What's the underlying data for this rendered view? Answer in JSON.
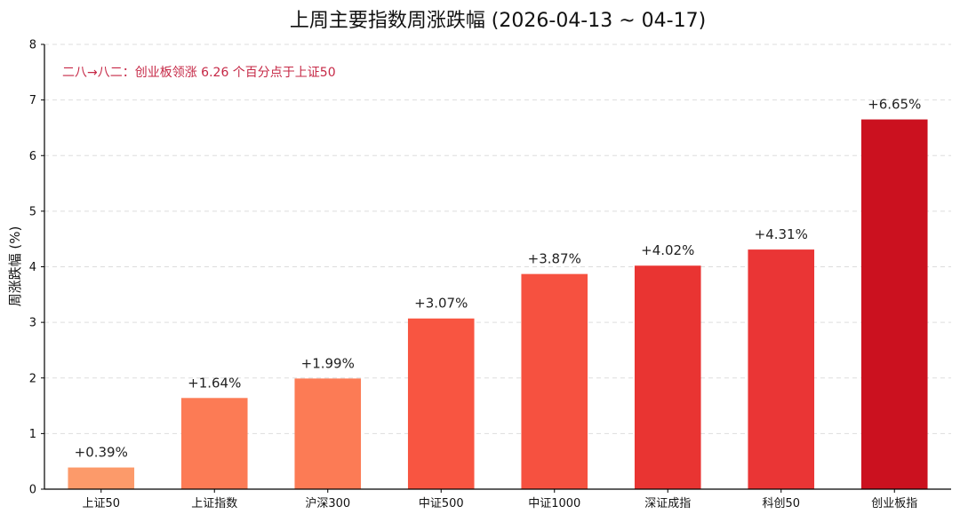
{
  "chart_data": {
    "type": "bar",
    "title": "上周主要指数周涨跌幅 (2026-04-13 ~ 04-17)",
    "xlabel": "",
    "ylabel": "周涨跌幅 (%)",
    "ylim": [
      0,
      8
    ],
    "yticks": [
      0,
      1,
      2,
      3,
      4,
      5,
      6,
      7,
      8
    ],
    "ytick_labels": [
      "0",
      "1",
      "2",
      "3",
      "4",
      "5",
      "6",
      "7",
      "8"
    ],
    "grid": true,
    "categories": [
      "上证50",
      "上证指数",
      "沪深300",
      "中证500",
      "中证1000",
      "深证成指",
      "科创50",
      "创业板指"
    ],
    "values": [
      0.39,
      1.64,
      1.99,
      3.07,
      3.87,
      4.02,
      4.31,
      6.65
    ],
    "value_labels": [
      "+0.39%",
      "+1.64%",
      "+1.99%",
      "+3.07%",
      "+3.87%",
      "+4.02%",
      "+4.31%",
      "+6.65%"
    ],
    "colors": [
      "#fc9a6a",
      "#fc7b55",
      "#fc7b55",
      "#f85541",
      "#f65140",
      "#e93432",
      "#ea3535",
      "#cb111f"
    ],
    "annotation": "二八→八二：创业板领涨 6.26 个百分点于上证50",
    "annotation_color": "#c62846"
  }
}
